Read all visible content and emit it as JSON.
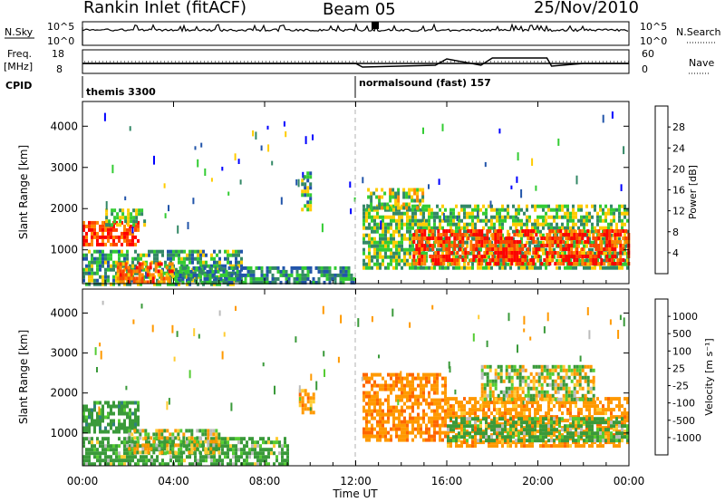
{
  "header": {
    "title": "Rankin Inlet (fitACF)",
    "beam": "Beam 05",
    "date": "25/Nov/2010"
  },
  "top_panels": {
    "nsky_label": "N.Sky",
    "nsky_ticks": [
      "10^5",
      "10^0"
    ],
    "nsearch_label": "N.Search",
    "freq_label_1": "Freq.",
    "freq_label_2": "[MHz]",
    "freq_ticks": [
      "18",
      "8"
    ],
    "nave_label": "Nave",
    "nave_ticks": [
      "60",
      "0"
    ],
    "cpid_label": "CPID",
    "cpid_segments": [
      {
        "start_hour": 0.0,
        "label": "themis 3300"
      },
      {
        "start_hour": 12.0,
        "label": "normalsound (fast) 157"
      }
    ]
  },
  "panels": [
    {
      "name": "power",
      "ylabel": "Slant Range [km]",
      "colorbar_label": "Power [dB]",
      "colorbar_ticks": [
        "28",
        "24",
        "20",
        "16",
        "12",
        "8",
        "4"
      ],
      "colorbar_colors": [
        "#ff0000",
        "#ff4400",
        "#ff8800",
        "#ffcc00",
        "#33cc33",
        "#338866",
        "#2255aa",
        "#0000ff"
      ]
    },
    {
      "name": "velocity",
      "ylabel": "Slant Range [km]",
      "colorbar_label": "Velocity [m s⁻¹]",
      "colorbar_ticks": [
        "1000",
        "500",
        "100",
        "25",
        "-25",
        "-100",
        "-500",
        "-1000"
      ],
      "colorbar_colors": [
        "#1a3fb0",
        "#2f7f7f",
        "#3a9a3a",
        "#55cc33",
        "#bbbbbb",
        "#ffcc33",
        "#ff9900",
        "#ff6600",
        "#ff0000"
      ]
    }
  ],
  "axes": {
    "xlabel": "Time UT",
    "x_ticks": [
      "00:00",
      "04:00",
      "08:00",
      "12:00",
      "16:00",
      "20:00",
      "00:00"
    ],
    "y_ticks": [
      "1000",
      "2000",
      "3000",
      "4000"
    ]
  },
  "chart_data": {
    "type": "heatmap",
    "title": "Rankin Inlet (fitACF)",
    "xlabel": "Time UT",
    "ylabel": "Slant Range [km]",
    "xlim": [
      0,
      24
    ],
    "ylim": [
      180,
      4600
    ],
    "x_tick_hours": [
      0,
      4,
      8,
      12,
      16,
      20,
      24
    ],
    "y_tick_values": [
      1000,
      2000,
      3000,
      4000
    ],
    "freq_ylim": [
      8,
      18
    ],
    "nave_ylim": [
      0,
      60
    ],
    "power": {
      "units": "dB",
      "clim": [
        0,
        32
      ],
      "regions": [
        {
          "t": [
            0.0,
            2.5
          ],
          "r": [
            1100,
            1700
          ],
          "level": 26
        },
        {
          "t": [
            1.0,
            2.7
          ],
          "r": [
            1600,
            2000
          ],
          "level": 14
        },
        {
          "t": [
            0.0,
            7.0
          ],
          "r": [
            200,
            1000
          ],
          "level": 12
        },
        {
          "t": [
            1.5,
            4.0
          ],
          "r": [
            200,
            700
          ],
          "level": 24
        },
        {
          "t": [
            4.0,
            12.0
          ],
          "r": [
            200,
            600
          ],
          "level": 10
        },
        {
          "t": [
            9.6,
            10.0
          ],
          "r": [
            2000,
            2900
          ],
          "level": 12
        },
        {
          "t": [
            12.3,
            24.0
          ],
          "r": [
            600,
            2100
          ],
          "level": 14
        },
        {
          "t": [
            14.5,
            24.0
          ],
          "r": [
            700,
            1500
          ],
          "level": 27
        },
        {
          "t": [
            12.5,
            15.0
          ],
          "r": [
            2000,
            2500
          ],
          "level": 16
        }
      ]
    },
    "velocity": {
      "units": "m s^-1",
      "levels": [
        -1000,
        -500,
        -100,
        -25,
        25,
        100,
        500,
        1000
      ],
      "regions": [
        {
          "t": [
            0.0,
            2.5
          ],
          "r": [
            1000,
            1800
          ],
          "level": 300
        },
        {
          "t": [
            0.0,
            9.0
          ],
          "r": [
            200,
            900
          ],
          "level": 200
        },
        {
          "t": [
            2.0,
            6.0
          ],
          "r": [
            500,
            1100
          ],
          "level": 0
        },
        {
          "t": [
            9.5,
            10.2
          ],
          "r": [
            1500,
            2100
          ],
          "level": -300
        },
        {
          "t": [
            12.3,
            16.0
          ],
          "r": [
            800,
            2500
          ],
          "level": -400
        },
        {
          "t": [
            16.0,
            24.0
          ],
          "r": [
            700,
            1900
          ],
          "level": -300
        },
        {
          "t": [
            16.0,
            24.0
          ],
          "r": [
            800,
            1400
          ],
          "level": 200
        },
        {
          "t": [
            17.5,
            22.5
          ],
          "r": [
            1800,
            2700
          ],
          "level": 0
        }
      ]
    }
  }
}
